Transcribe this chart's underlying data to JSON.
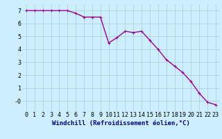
{
  "x": [
    0,
    1,
    2,
    3,
    4,
    5,
    6,
    7,
    8,
    9,
    10,
    11,
    12,
    13,
    14,
    15,
    16,
    17,
    18,
    19,
    20,
    21,
    22,
    23
  ],
  "y": [
    7.0,
    7.0,
    7.0,
    7.0,
    7.0,
    7.0,
    6.8,
    6.5,
    6.5,
    6.5,
    4.5,
    4.9,
    5.4,
    5.3,
    5.4,
    4.7,
    4.0,
    3.2,
    2.7,
    2.2,
    1.5,
    0.6,
    -0.1,
    -0.3
  ],
  "line_color": "#990099",
  "marker": "+",
  "marker_size": 3,
  "bg_color": "#cceeff",
  "grid_color": "#aacccc",
  "xlabel": "Windchill (Refroidissement éolien,°C)",
  "xlim_min": -0.5,
  "xlim_max": 23.5,
  "ylim_min": -0.8,
  "ylim_max": 7.5,
  "yticks": [
    0,
    1,
    2,
    3,
    4,
    5,
    6,
    7
  ],
  "ytick_labels": [
    "-0",
    "1",
    "2",
    "3",
    "4",
    "5",
    "6",
    "7"
  ],
  "xticks": [
    0,
    1,
    2,
    3,
    4,
    5,
    6,
    7,
    8,
    9,
    10,
    11,
    12,
    13,
    14,
    15,
    16,
    17,
    18,
    19,
    20,
    21,
    22,
    23
  ],
  "xlabel_fontsize": 6.5,
  "tick_fontsize": 6.0,
  "line_width": 1.0,
  "xlabel_color": "#000080"
}
